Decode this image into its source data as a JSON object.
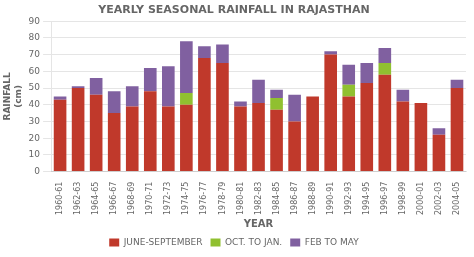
{
  "chart_data": {
    "type": "bar",
    "stacked": true,
    "title": "YEARLY SEASONAL RAINFALL IN RAJASTHAN",
    "xlabel": "YEAR",
    "ylabel": "RAINFALL\n(cm)",
    "categories": [
      "1960-61",
      "1962-63",
      "1964-65",
      "1966-67",
      "1968-69",
      "1970-71",
      "1972-73",
      "1974-75",
      "1976-77",
      "1978-79",
      "1980-81",
      "1982-83",
      "1984-85",
      "1986-87",
      "1988-89",
      "1990-91",
      "1992-93",
      "1994-95",
      "1996-97",
      "1998-99",
      "2000-01",
      "2002-03",
      "2004-05"
    ],
    "series": [
      {
        "name": "JUNE-SEPTEMBER",
        "color": "#C0392B",
        "values": [
          43,
          50,
          46,
          35,
          39,
          48,
          39,
          40,
          68,
          65,
          39,
          41,
          37,
          30,
          45,
          70,
          45,
          53,
          58,
          42,
          41,
          22,
          50
        ]
      },
      {
        "name": "OCT. TO JAN.",
        "color": "#90C030",
        "values": [
          0,
          0,
          0,
          0,
          0,
          0,
          0,
          7,
          0,
          0,
          0,
          0,
          7,
          0,
          0,
          0,
          7,
          0,
          7,
          0,
          0,
          0,
          0
        ]
      },
      {
        "name": "FEB TO MAY",
        "color": "#8060A0",
        "values": [
          2,
          1,
          10,
          13,
          12,
          14,
          24,
          31,
          7,
          11,
          3,
          14,
          5,
          16,
          0,
          2,
          12,
          12,
          9,
          7,
          0,
          4,
          5
        ]
      }
    ],
    "ylim": [
      0,
      90
    ],
    "yticks": [
      0,
      10,
      20,
      30,
      40,
      50,
      60,
      70,
      80,
      90
    ],
    "grid": true,
    "legend": "bottom"
  }
}
